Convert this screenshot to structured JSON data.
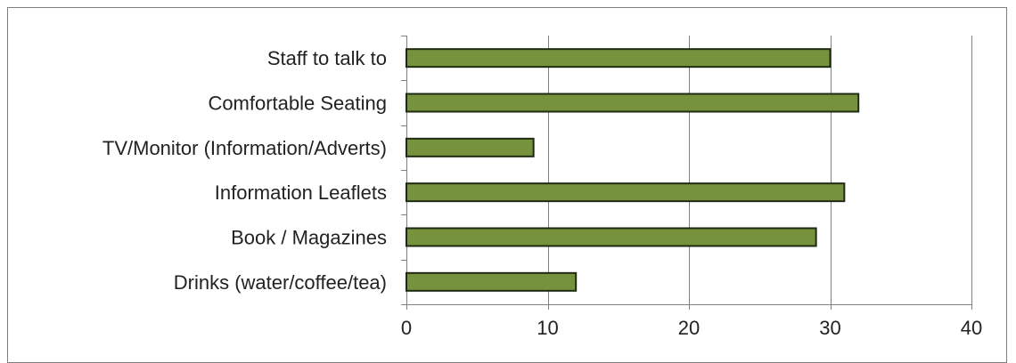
{
  "chart_data": {
    "type": "bar",
    "orientation": "horizontal",
    "categories": [
      "Staff to talk to",
      "Comfortable Seating",
      "TV/Monitor (Information/Adverts)",
      "Information Leaflets",
      "Book / Magazines",
      "Drinks (water/coffee/tea)"
    ],
    "values": [
      30,
      32,
      9,
      31,
      29,
      12
    ],
    "title": "",
    "xlabel": "",
    "ylabel": "",
    "xlim": [
      0,
      40
    ],
    "xticks": [
      0,
      10,
      20,
      30,
      40
    ],
    "grid": true,
    "legend": "none",
    "bar_color": "#76923c",
    "bar_edge_color": "#1f2a12"
  }
}
